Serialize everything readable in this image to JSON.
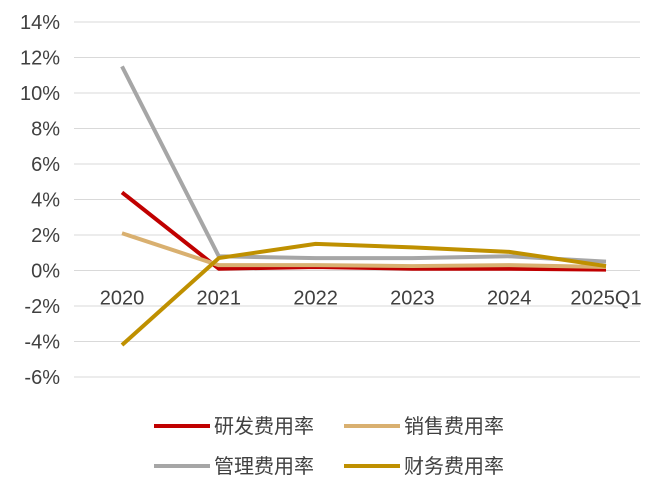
{
  "chart_data": {
    "type": "line",
    "title": "",
    "xlabel": "",
    "ylabel": "",
    "categories": [
      "2020",
      "2021",
      "2022",
      "2023",
      "2024",
      "2025Q1"
    ],
    "ylim": [
      -6,
      14
    ],
    "yticks": [
      -6,
      -4,
      -2,
      0,
      2,
      4,
      6,
      8,
      10,
      12,
      14
    ],
    "ytick_labels": [
      "-6%",
      "-4%",
      "-2%",
      "0%",
      "2%",
      "4%",
      "6%",
      "8%",
      "10%",
      "12%",
      "14%"
    ],
    "grid": "horizontal",
    "legend_position": "bottom",
    "series": [
      {
        "name": "研发费用率",
        "color": "#C00000",
        "values": [
          4.4,
          0.1,
          0.2,
          0.1,
          0.1,
          0.05
        ]
      },
      {
        "name": "销售费用率",
        "color": "#D9B070",
        "values": [
          2.1,
          0.3,
          0.3,
          0.25,
          0.3,
          0.2
        ]
      },
      {
        "name": "管理费用率",
        "color": "#A6A6A6",
        "values": [
          11.5,
          0.8,
          0.7,
          0.7,
          0.8,
          0.5
        ]
      },
      {
        "name": "财务费用率",
        "color": "#BF9000",
        "values": [
          -4.2,
          0.7,
          1.5,
          1.3,
          1.05,
          0.25
        ]
      }
    ]
  }
}
